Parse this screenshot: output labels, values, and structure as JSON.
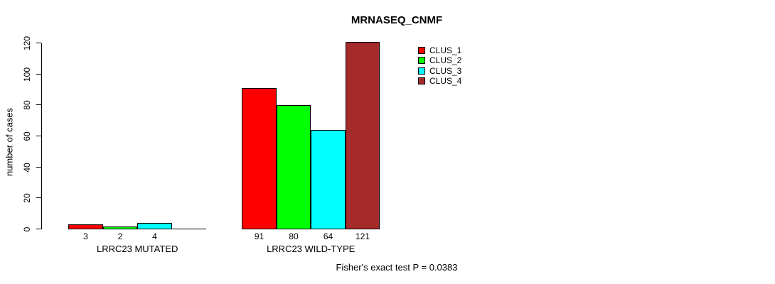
{
  "chart_data": {
    "type": "bar",
    "title": "MRNASEQ_CNMF",
    "ylabel": "number of cases",
    "xlabel": "",
    "ylim": [
      0,
      120
    ],
    "yticks": [
      0,
      20,
      40,
      60,
      80,
      100,
      120
    ],
    "grid": false,
    "legend_position": "top-right",
    "categories": [
      "LRRC23 MUTATED",
      "LRRC23 WILD-TYPE"
    ],
    "series": [
      {
        "name": "CLUS_1",
        "color": "#ff0000",
        "values": [
          3,
          91
        ]
      },
      {
        "name": "CLUS_2",
        "color": "#00ff00",
        "values": [
          2,
          80
        ]
      },
      {
        "name": "CLUS_3",
        "color": "#00ffff",
        "values": [
          4,
          64
        ]
      },
      {
        "name": "CLUS_4",
        "color": "#a52a2a",
        "values": [
          0,
          121
        ]
      }
    ],
    "bar_value_labels_shown": true,
    "zero_value_labels_hidden": true,
    "annotation": "Fisher's exact test P = 0.0383"
  },
  "colors": {
    "background": "#ffffff",
    "axis": "#000000",
    "bar_border": "#000000",
    "text": "#000000"
  }
}
